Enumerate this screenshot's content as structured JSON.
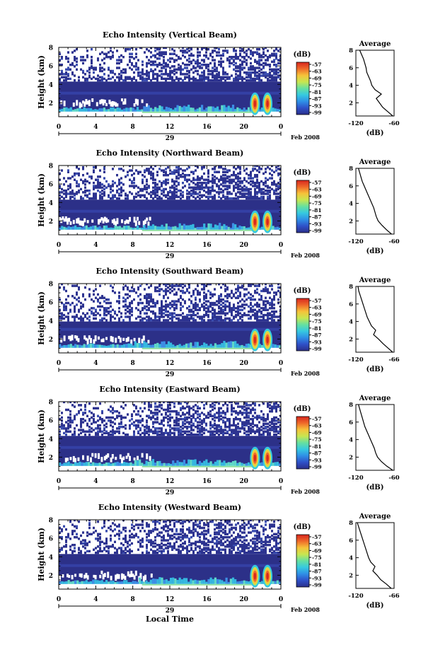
{
  "xlabel": "Local Time",
  "date_label": "29",
  "month_label": "Feb 2008",
  "x_ticks": [
    "0",
    "4",
    "8",
    "12",
    "16",
    "20",
    "0"
  ],
  "colorbar": {
    "unit": "(dB)",
    "ticks": [
      "-57",
      "-63",
      "-69",
      "-75",
      "-81",
      "-87",
      "-93",
      "-99"
    ],
    "colors": [
      "#2b2f8a",
      "#2f50c8",
      "#2f8fe6",
      "#36c9e0",
      "#66e0a0",
      "#c8e650",
      "#f6c23a",
      "#ef6a2a",
      "#d7261e"
    ]
  },
  "profile_title": "Average",
  "profile_xlabel": "(dB)",
  "chart_data": [
    {
      "type": "heatmap",
      "title": "Echo Intensity (Vertical Beam)",
      "ylabel": "Height (km)",
      "y_ticks": [
        "2",
        "4",
        "6",
        "8"
      ],
      "ylim": [
        0.5,
        8
      ],
      "xlim": [
        0,
        24
      ],
      "profile": {
        "type": "line",
        "title": "Average",
        "x_ticks": [
          "-120",
          "-60"
        ],
        "xlim": [
          -120,
          -60
        ],
        "y_ticks": [
          "2",
          "4",
          "6",
          "8"
        ],
        "heights": [
          0.5,
          1,
          1.5,
          2,
          2.5,
          3,
          3.5,
          4,
          4.5,
          5,
          5.5,
          6,
          6.5,
          7,
          7.5,
          8
        ],
        "values": [
          -62,
          -70,
          -78,
          -83,
          -88,
          -80,
          -90,
          -95,
          -97,
          -100,
          -103,
          -104,
          -106,
          -108,
          -111,
          -114
        ]
      }
    },
    {
      "type": "heatmap",
      "title": "Echo Intensity (Northward Beam)",
      "ylabel": "Height (km)",
      "y_ticks": [
        "2",
        "4",
        "6",
        "8"
      ],
      "ylim": [
        0.5,
        8
      ],
      "xlim": [
        0,
        24
      ],
      "profile": {
        "type": "line",
        "title": "Average",
        "x_ticks": [
          "-120",
          "-60"
        ],
        "xlim": [
          -120,
          -60
        ],
        "y_ticks": [
          "2",
          "4",
          "6",
          "8"
        ],
        "heights": [
          0.5,
          1,
          1.5,
          2,
          2.5,
          3,
          3.5,
          4,
          4.5,
          5,
          5.5,
          6,
          6.5,
          7,
          7.5,
          8
        ],
        "values": [
          -64,
          -72,
          -79,
          -85,
          -88,
          -90,
          -92,
          -95,
          -98,
          -101,
          -104,
          -107,
          -110,
          -112,
          -114,
          -116
        ]
      }
    },
    {
      "type": "heatmap",
      "title": "Echo Intensity (Southward Beam)",
      "ylabel": "Height (km)",
      "y_ticks": [
        "2",
        "4",
        "6",
        "8"
      ],
      "ylim": [
        0.5,
        8
      ],
      "xlim": [
        0,
        24
      ],
      "profile": {
        "type": "line",
        "title": "Average",
        "x_ticks": [
          "-120",
          "-66"
        ],
        "xlim": [
          -120,
          -66
        ],
        "y_ticks": [
          "2",
          "4",
          "6",
          "8"
        ],
        "heights": [
          0.5,
          1,
          1.5,
          2,
          2.5,
          3,
          3.5,
          4,
          4.5,
          5,
          5.5,
          6,
          6.5,
          7,
          7.5,
          8
        ],
        "values": [
          -68,
          -75,
          -82,
          -88,
          -95,
          -92,
          -98,
          -101,
          -104,
          -106,
          -108,
          -110,
          -112,
          -114,
          -116,
          -117
        ]
      }
    },
    {
      "type": "heatmap",
      "title": "Echo Intensity (Eastward Beam)",
      "ylabel": "Height (km)",
      "y_ticks": [
        "2",
        "4",
        "6",
        "8"
      ],
      "ylim": [
        0.5,
        8
      ],
      "xlim": [
        0,
        24
      ],
      "profile": {
        "type": "line",
        "title": "Average",
        "x_ticks": [
          "-120",
          "-60"
        ],
        "xlim": [
          -120,
          -60
        ],
        "y_ticks": [
          "2",
          "4",
          "6",
          "8"
        ],
        "heights": [
          0.5,
          1,
          1.5,
          2,
          2.5,
          3,
          3.5,
          4,
          4.5,
          5,
          5.5,
          6,
          6.5,
          7,
          7.5,
          8
        ],
        "values": [
          -62,
          -72,
          -80,
          -86,
          -89,
          -91,
          -94,
          -97,
          -100,
          -103,
          -106,
          -108,
          -110,
          -112,
          -114,
          -116
        ]
      }
    },
    {
      "type": "heatmap",
      "title": "Echo Intensity (Westward Beam)",
      "ylabel": "Height (km)",
      "y_ticks": [
        "2",
        "4",
        "6",
        "8"
      ],
      "ylim": [
        0.5,
        8
      ],
      "xlim": [
        0,
        24
      ],
      "profile": {
        "type": "line",
        "title": "Average",
        "x_ticks": [
          "-120",
          "-66"
        ],
        "xlim": [
          -120,
          -66
        ],
        "y_ticks": [
          "2",
          "4",
          "6",
          "8"
        ],
        "heights": [
          0.5,
          1,
          1.5,
          2,
          2.5,
          3,
          3.5,
          4,
          4.5,
          5,
          5.5,
          6,
          6.5,
          7,
          7.5,
          8
        ],
        "values": [
          -70,
          -77,
          -85,
          -90,
          -96,
          -93,
          -99,
          -102,
          -104,
          -106,
          -108,
          -110,
          -112,
          -114,
          -116,
          -118
        ]
      }
    }
  ]
}
